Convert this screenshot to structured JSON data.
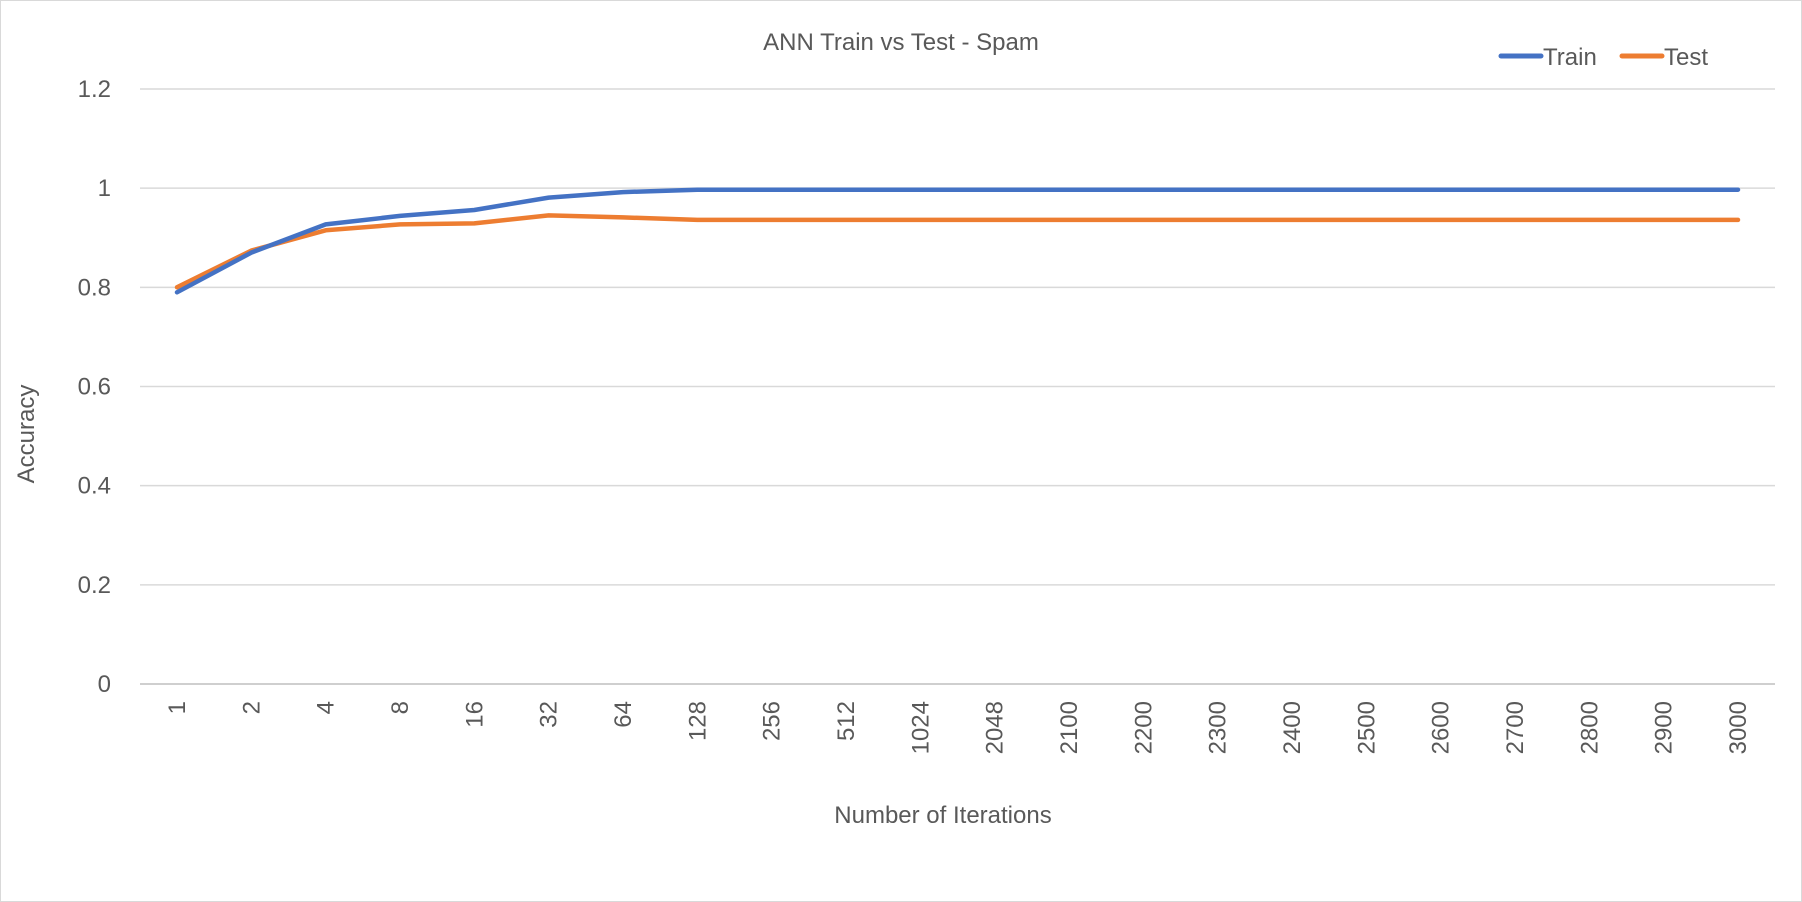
{
  "chart_data": {
    "type": "line",
    "title": "ANN Train vs Test - Spam",
    "xlabel": "Number of Iterations",
    "ylabel": "Accuracy",
    "categories": [
      "1",
      "2",
      "4",
      "8",
      "16",
      "32",
      "64",
      "128",
      "256",
      "512",
      "1024",
      "2048",
      "2100",
      "2200",
      "2300",
      "2400",
      "2500",
      "2600",
      "2700",
      "2800",
      "2900",
      "3000"
    ],
    "ylim": [
      0,
      1.2
    ],
    "yticks": [
      "0",
      "0.2",
      "0.4",
      "0.6",
      "0.8",
      "1",
      "1.2"
    ],
    "grid": true,
    "legend_position": "top-right",
    "series": [
      {
        "name": "Train",
        "color": "#4472C4",
        "values": [
          0.79,
          0.87,
          0.927,
          0.944,
          0.956,
          0.981,
          0.992,
          0.997,
          0.997,
          0.997,
          0.997,
          0.997,
          0.997,
          0.997,
          0.997,
          0.997,
          0.997,
          0.997,
          0.997,
          0.997,
          0.997,
          0.997
        ]
      },
      {
        "name": "Test",
        "color": "#ED7D31",
        "values": [
          0.8,
          0.874,
          0.915,
          0.927,
          0.929,
          0.945,
          0.941,
          0.936,
          0.936,
          0.936,
          0.936,
          0.936,
          0.936,
          0.936,
          0.936,
          0.936,
          0.936,
          0.936,
          0.936,
          0.936,
          0.936,
          0.936
        ]
      }
    ]
  }
}
